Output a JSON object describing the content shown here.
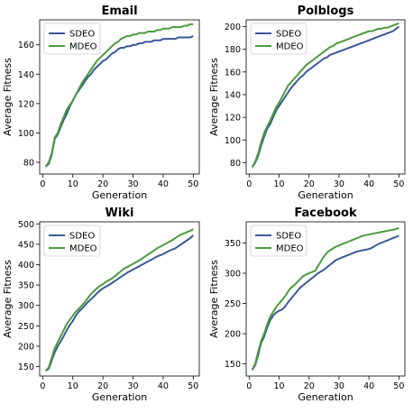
{
  "chart_data": [
    {
      "type": "line",
      "title": "Email",
      "xlabel": "Generation",
      "ylabel": "Average Fitness",
      "xlim": [
        -1,
        52
      ],
      "ylim": [
        72,
        177
      ],
      "xticks": [
        0,
        10,
        20,
        30,
        40,
        50
      ],
      "yticks": [
        80,
        100,
        120,
        140,
        160
      ],
      "grid": false,
      "legend": "top-left",
      "x": [
        1,
        2,
        3,
        4,
        5,
        6,
        7,
        8,
        9,
        10,
        11,
        12,
        13,
        14,
        15,
        16,
        17,
        18,
        19,
        20,
        21,
        22,
        23,
        24,
        25,
        26,
        27,
        28,
        29,
        30,
        31,
        32,
        33,
        34,
        35,
        36,
        37,
        38,
        39,
        40,
        41,
        42,
        43,
        44,
        45,
        46,
        47,
        48,
        49,
        50
      ],
      "series": [
        {
          "name": "SDEO",
          "color": "#3b5998",
          "values": [
            77,
            79,
            85,
            96,
            99,
            104,
            109,
            113,
            118,
            122,
            126,
            129,
            132,
            135,
            138,
            140,
            143,
            145,
            147,
            149,
            150,
            152,
            154,
            155,
            157,
            158,
            158,
            159,
            159,
            160,
            160,
            161,
            161,
            162,
            162,
            162,
            163,
            163,
            163,
            164,
            164,
            164,
            164,
            164,
            165,
            165,
            165,
            165,
            165,
            166
          ]
        },
        {
          "name": "MDEO",
          "color": "#4c9a3f",
          "values": [
            77,
            80,
            86,
            97,
            100,
            106,
            111,
            116,
            119,
            122,
            126,
            130,
            134,
            137,
            140,
            143,
            146,
            149,
            151,
            153,
            155,
            157,
            159,
            161,
            162,
            164,
            165,
            166,
            166,
            167,
            167,
            168,
            168,
            168,
            169,
            169,
            169,
            170,
            170,
            171,
            171,
            171,
            172,
            172,
            172,
            172,
            173,
            173,
            174,
            174
          ]
        }
      ]
    },
    {
      "type": "line",
      "title": "Polblogs",
      "xlabel": "Generation",
      "ylabel": "Average Fitness",
      "xlim": [
        -1,
        52
      ],
      "ylim": [
        70,
        206
      ],
      "xticks": [
        0,
        10,
        20,
        30,
        40,
        50
      ],
      "yticks": [
        80,
        100,
        120,
        140,
        160,
        180,
        200
      ],
      "grid": false,
      "legend": "top-left",
      "x": [
        1,
        2,
        3,
        4,
        5,
        6,
        7,
        8,
        9,
        10,
        11,
        12,
        13,
        14,
        15,
        16,
        17,
        18,
        19,
        20,
        21,
        22,
        23,
        24,
        25,
        26,
        27,
        28,
        29,
        30,
        31,
        32,
        33,
        34,
        35,
        36,
        37,
        38,
        39,
        40,
        41,
        42,
        43,
        44,
        45,
        46,
        47,
        48,
        49,
        50
      ],
      "series": [
        {
          "name": "SDEO",
          "color": "#3b5998",
          "values": [
            76,
            80,
            86,
            95,
            103,
            110,
            114,
            120,
            126,
            130,
            134,
            138,
            142,
            146,
            149,
            152,
            155,
            157,
            160,
            162,
            164,
            166,
            168,
            170,
            172,
            173,
            175,
            176,
            177,
            178,
            179,
            180,
            181,
            182,
            183,
            184,
            185,
            186,
            187,
            188,
            189,
            190,
            191,
            192,
            193,
            194,
            195,
            196,
            198,
            200
          ]
        },
        {
          "name": "MDEO",
          "color": "#4c9a3f",
          "values": [
            76,
            81,
            88,
            98,
            106,
            112,
            117,
            123,
            129,
            133,
            138,
            143,
            148,
            151,
            154,
            157,
            160,
            163,
            166,
            168,
            170,
            172,
            174,
            176,
            178,
            180,
            182,
            183,
            185,
            186,
            187,
            188,
            189,
            190,
            191,
            192,
            193,
            194,
            195,
            196,
            196,
            197,
            198,
            198,
            199,
            199,
            200,
            201,
            202,
            203
          ]
        }
      ]
    },
    {
      "type": "line",
      "title": "Wiki",
      "xlabel": "Generation",
      "ylabel": "Average Fitness",
      "xlim": [
        -1,
        52
      ],
      "ylim": [
        127,
        505
      ],
      "xticks": [
        0,
        10,
        20,
        30,
        40,
        50
      ],
      "yticks": [
        150,
        200,
        250,
        300,
        350,
        400,
        450,
        500
      ],
      "grid": false,
      "legend": "top-left",
      "x": [
        1,
        2,
        3,
        4,
        5,
        6,
        7,
        8,
        9,
        10,
        11,
        12,
        13,
        14,
        15,
        16,
        17,
        18,
        19,
        20,
        21,
        22,
        23,
        24,
        25,
        26,
        27,
        28,
        29,
        30,
        31,
        32,
        33,
        34,
        35,
        36,
        37,
        38,
        39,
        40,
        41,
        42,
        43,
        44,
        45,
        46,
        47,
        48,
        49,
        50
      ],
      "series": [
        {
          "name": "SDEO",
          "color": "#3b5998",
          "values": [
            140,
            145,
            165,
            185,
            200,
            212,
            225,
            240,
            252,
            262,
            275,
            285,
            292,
            300,
            308,
            315,
            322,
            330,
            336,
            342,
            346,
            350,
            355,
            360,
            365,
            370,
            375,
            380,
            384,
            388,
            392,
            396,
            400,
            404,
            408,
            412,
            416,
            420,
            423,
            426,
            430,
            434,
            437,
            440,
            445,
            450,
            455,
            460,
            465,
            472
          ]
        },
        {
          "name": "MDEO",
          "color": "#4c9a3f",
          "values": [
            140,
            148,
            172,
            195,
            210,
            225,
            240,
            255,
            265,
            275,
            285,
            292,
            300,
            308,
            318,
            328,
            335,
            342,
            348,
            352,
            358,
            362,
            366,
            372,
            378,
            384,
            390,
            394,
            398,
            402,
            406,
            410,
            415,
            420,
            425,
            430,
            435,
            440,
            444,
            448,
            452,
            456,
            460,
            465,
            470,
            474,
            477,
            480,
            483,
            487
          ]
        }
      ]
    },
    {
      "type": "line",
      "title": "Facebook",
      "xlabel": "Generation",
      "ylabel": "Average Fitness",
      "xlim": [
        -1,
        52
      ],
      "ylim": [
        130,
        385
      ],
      "xticks": [
        0,
        10,
        20,
        30,
        40,
        50
      ],
      "yticks": [
        150,
        200,
        250,
        300,
        350
      ],
      "grid": false,
      "legend": "top-left",
      "x": [
        1,
        2,
        3,
        4,
        5,
        6,
        7,
        8,
        9,
        10,
        11,
        12,
        13,
        14,
        15,
        16,
        17,
        18,
        19,
        20,
        21,
        22,
        23,
        24,
        25,
        26,
        27,
        28,
        29,
        30,
        31,
        32,
        33,
        34,
        35,
        36,
        37,
        38,
        39,
        40,
        41,
        42,
        43,
        44,
        45,
        46,
        47,
        48,
        49,
        50
      ],
      "series": [
        {
          "name": "SDEO",
          "color": "#3b5998",
          "values": [
            140,
            148,
            165,
            185,
            195,
            210,
            222,
            230,
            235,
            238,
            240,
            245,
            252,
            258,
            264,
            270,
            276,
            280,
            284,
            288,
            292,
            296,
            300,
            303,
            306,
            310,
            314,
            318,
            322,
            324,
            326,
            328,
            330,
            332,
            334,
            336,
            337,
            338,
            339,
            340,
            342,
            345,
            348,
            350,
            352,
            354,
            356,
            358,
            360,
            362
          ]
        },
        {
          "name": "MDEO",
          "color": "#4c9a3f",
          "values": [
            140,
            150,
            170,
            188,
            200,
            215,
            228,
            236,
            244,
            250,
            256,
            262,
            270,
            276,
            280,
            285,
            290,
            295,
            298,
            300,
            302,
            304,
            312,
            320,
            328,
            334,
            338,
            341,
            344,
            346,
            348,
            350,
            352,
            354,
            356,
            358,
            360,
            362,
            363,
            364,
            365,
            366,
            367,
            368,
            369,
            370,
            371,
            372,
            373,
            375
          ]
        }
      ]
    }
  ]
}
